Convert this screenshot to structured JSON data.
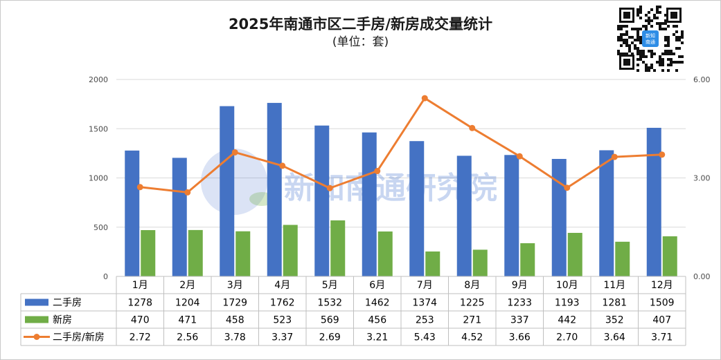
{
  "title": "2025年南通市区二手房/新房成交量统计",
  "subtitle": "(单位：套)",
  "watermark": "新知南通研究院",
  "qr_badge": "新知\n南通",
  "colors": {
    "secondhand": "#4472c4",
    "newhouse": "#70ad47",
    "ratio": "#ed7d31",
    "grid": "#d9d9d9",
    "border": "#bfbfbf"
  },
  "chart_data": {
    "type": "bar",
    "title": "2025年南通市区二手房/新房成交量统计",
    "unit": "(单位：套)",
    "categories": [
      "1月",
      "2月",
      "3月",
      "4月",
      "5月",
      "6月",
      "7月",
      "8月",
      "9月",
      "10月",
      "11月",
      "12月"
    ],
    "series": [
      {
        "name": "二手房",
        "kind": "bar",
        "axis": "left",
        "values": [
          1278,
          1204,
          1729,
          1762,
          1532,
          1462,
          1374,
          1225,
          1233,
          1193,
          1281,
          1509
        ],
        "labels": [
          "1278",
          "1204",
          "1729",
          "1762",
          "1532",
          "1462",
          "1374",
          "1225",
          "1233",
          "1193",
          "1281",
          "1509"
        ]
      },
      {
        "name": "新房",
        "kind": "bar",
        "axis": "left",
        "values": [
          470,
          471,
          458,
          523,
          569,
          456,
          253,
          271,
          337,
          442,
          352,
          407
        ],
        "labels": [
          "470",
          "471",
          "458",
          "523",
          "569",
          "456",
          "253",
          "271",
          "337",
          "442",
          "352",
          "407"
        ]
      },
      {
        "name": "二手房/新房",
        "kind": "line",
        "axis": "right",
        "values": [
          2.72,
          2.56,
          3.78,
          3.37,
          2.69,
          3.21,
          5.43,
          4.52,
          3.66,
          2.7,
          3.64,
          3.71
        ],
        "labels": [
          "2.72",
          "2.56",
          "3.78",
          "3.37",
          "2.69",
          "3.21",
          "5.43",
          "4.52",
          "3.66",
          "2.70",
          "3.64",
          "3.71"
        ]
      }
    ],
    "y_left": {
      "min": 0,
      "max": 2000,
      "ticks": [
        0,
        500,
        1000,
        1500,
        2000
      ],
      "tick_labels": [
        "0",
        "500",
        "1000",
        "1500",
        "2000"
      ]
    },
    "y_right": {
      "min": 0,
      "max": 6,
      "ticks": [
        0,
        3,
        6
      ],
      "tick_labels": [
        "0.00",
        "3.00",
        "6.00"
      ]
    },
    "grid": true,
    "legend": "data-table-bottom"
  }
}
